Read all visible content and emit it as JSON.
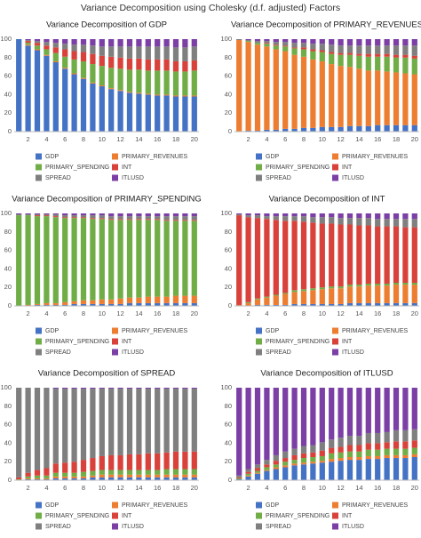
{
  "title": "Variance Decomposition using Cholesky (d.f. adjusted) Factors",
  "chart_data": [
    {
      "type": "bar",
      "stacked": true,
      "title": "Variance Decomposition of GDP",
      "categories": [
        null,
        "2",
        null,
        "4",
        null,
        "6",
        null,
        "8",
        null,
        "10",
        null,
        "12",
        null,
        "14",
        null,
        "16",
        null,
        "18",
        null,
        "20"
      ],
      "ylim": [
        0,
        100
      ],
      "yticks": [
        0,
        20,
        40,
        60,
        80,
        100
      ],
      "series": [
        {
          "name": "GDP",
          "color": "#4472c4",
          "values": [
            100,
            93,
            88,
            82,
            75,
            68,
            62,
            57,
            52,
            49,
            46,
            44,
            42,
            41,
            40,
            39,
            39,
            38,
            38,
            38
          ]
        },
        {
          "name": "PRIMARY_REVENUES",
          "color": "#ed7d31",
          "values": [
            0,
            1,
            1,
            1,
            1,
            1,
            1,
            1,
            1,
            1,
            1,
            1,
            1,
            1,
            1,
            1,
            1,
            1,
            1,
            1
          ]
        },
        {
          "name": "PRIMARY_SPENDING",
          "color": "#70ad47",
          "values": [
            0,
            2,
            4,
            6,
            9,
            12,
            15,
            18,
            20,
            21,
            22,
            23,
            24,
            25,
            25,
            26,
            26,
            26,
            26,
            27
          ]
        },
        {
          "name": "INT",
          "color": "#d9413b",
          "values": [
            0,
            2,
            3,
            4,
            6,
            8,
            9,
            10,
            11,
            11,
            12,
            12,
            12,
            12,
            12,
            12,
            12,
            11,
            11,
            11
          ]
        },
        {
          "name": "SPREAD",
          "color": "#7f7f7f",
          "values": [
            0,
            1,
            2,
            4,
            5,
            6,
            7,
            8,
            9,
            10,
            11,
            12,
            13,
            13,
            14,
            14,
            14,
            15,
            15,
            15
          ]
        },
        {
          "name": "ITLUSD",
          "color": "#7b3fa6",
          "values": [
            0,
            1,
            2,
            3,
            4,
            5,
            6,
            6,
            7,
            8,
            8,
            8,
            8,
            8,
            8,
            8,
            8,
            9,
            9,
            8
          ]
        }
      ]
    },
    {
      "type": "bar",
      "stacked": true,
      "title": "Variance Decomposition of PRIMARY_REVENUES",
      "categories": [
        null,
        "2",
        null,
        "4",
        null,
        "6",
        null,
        "8",
        null,
        "10",
        null,
        "12",
        null,
        "14",
        null,
        "16",
        null,
        "18",
        null,
        "20"
      ],
      "ylim": [
        0,
        100
      ],
      "yticks": [
        0,
        20,
        40,
        60,
        80,
        100
      ],
      "series": [
        {
          "name": "GDP",
          "color": "#4472c4",
          "values": [
            0,
            1,
            1,
            2,
            2,
            3,
            3,
            4,
            4,
            5,
            5,
            5,
            6,
            6,
            6,
            7,
            7,
            7,
            7,
            7
          ]
        },
        {
          "name": "PRIMARY_REVENUES",
          "color": "#ed7d31",
          "values": [
            99,
            96,
            93,
            90,
            87,
            84,
            80,
            77,
            74,
            71,
            68,
            66,
            64,
            62,
            60,
            59,
            58,
            57,
            56,
            55
          ]
        },
        {
          "name": "PRIMARY_SPENDING",
          "color": "#70ad47",
          "values": [
            0,
            1,
            2,
            3,
            4,
            5,
            7,
            8,
            9,
            10,
            11,
            12,
            13,
            14,
            15,
            15,
            16,
            16,
            17,
            17
          ]
        },
        {
          "name": "INT",
          "color": "#d9413b",
          "values": [
            0,
            0,
            0,
            1,
            1,
            1,
            1,
            2,
            2,
            2,
            2,
            2,
            2,
            2,
            3,
            3,
            3,
            3,
            3,
            3
          ]
        },
        {
          "name": "SPREAD",
          "color": "#7f7f7f",
          "values": [
            1,
            1,
            2,
            2,
            3,
            4,
            5,
            5,
            6,
            7,
            8,
            8,
            8,
            9,
            9,
            9,
            9,
            10,
            10,
            11
          ]
        },
        {
          "name": "ITLUSD",
          "color": "#7b3fa6",
          "values": [
            0,
            1,
            2,
            2,
            3,
            3,
            4,
            4,
            5,
            5,
            6,
            7,
            7,
            7,
            7,
            7,
            7,
            7,
            7,
            7
          ]
        }
      ]
    },
    {
      "type": "bar",
      "stacked": true,
      "title": "Variance Decomposition of PRIMARY_SPENDING",
      "categories": [
        null,
        "2",
        null,
        "4",
        null,
        "6",
        null,
        "8",
        null,
        "10",
        null,
        "12",
        null,
        "14",
        null,
        "16",
        null,
        "18",
        null,
        "20"
      ],
      "ylim": [
        0,
        100
      ],
      "yticks": [
        0,
        20,
        40,
        60,
        80,
        100
      ],
      "series": [
        {
          "name": "GDP",
          "color": "#4472c4",
          "values": [
            0,
            0,
            1,
            1,
            1,
            1,
            2,
            2,
            2,
            2,
            2,
            2,
            3,
            3,
            3,
            3,
            3,
            3,
            3,
            3
          ]
        },
        {
          "name": "PRIMARY_REVENUES",
          "color": "#ed7d31",
          "values": [
            0,
            1,
            1,
            2,
            2,
            3,
            3,
            4,
            4,
            5,
            5,
            6,
            6,
            6,
            7,
            7,
            7,
            8,
            8,
            8
          ]
        },
        {
          "name": "PRIMARY_SPENDING",
          "color": "#70ad47",
          "values": [
            98,
            97,
            95,
            94,
            93,
            91,
            90,
            89,
            88,
            87,
            86,
            85,
            84,
            84,
            83,
            83,
            82,
            81,
            81,
            81
          ]
        },
        {
          "name": "INT",
          "color": "#d9413b",
          "values": [
            0,
            0,
            1,
            1,
            1,
            1,
            1,
            1,
            1,
            1,
            1,
            1,
            1,
            1,
            1,
            1,
            1,
            1,
            1,
            1
          ]
        },
        {
          "name": "SPREAD",
          "color": "#7f7f7f",
          "values": [
            1,
            1,
            1,
            1,
            2,
            2,
            2,
            2,
            3,
            3,
            3,
            3,
            3,
            3,
            3,
            3,
            4,
            4,
            4,
            4
          ]
        },
        {
          "name": "ITLUSD",
          "color": "#7b3fa6",
          "values": [
            1,
            1,
            1,
            1,
            1,
            2,
            2,
            2,
            2,
            2,
            3,
            3,
            3,
            3,
            3,
            3,
            3,
            3,
            3,
            3
          ]
        }
      ]
    },
    {
      "type": "bar",
      "stacked": true,
      "title": "Variance Decomposition of INT",
      "categories": [
        null,
        "2",
        null,
        "4",
        null,
        "6",
        null,
        "8",
        null,
        "10",
        null,
        "12",
        null,
        "14",
        null,
        "16",
        null,
        "18",
        null,
        "20"
      ],
      "ylim": [
        0,
        100
      ],
      "yticks": [
        0,
        20,
        40,
        60,
        80,
        100
      ],
      "series": [
        {
          "name": "GDP",
          "color": "#4472c4",
          "values": [
            0,
            0,
            1,
            1,
            1,
            1,
            2,
            2,
            2,
            2,
            2,
            2,
            3,
            3,
            3,
            3,
            3,
            3,
            3,
            3
          ]
        },
        {
          "name": "PRIMARY_REVENUES",
          "color": "#ed7d31",
          "values": [
            1,
            3,
            6,
            8,
            10,
            12,
            13,
            14,
            15,
            16,
            17,
            17,
            18,
            18,
            19,
            19,
            19,
            20,
            20,
            20
          ]
        },
        {
          "name": "PRIMARY_SPENDING",
          "color": "#70ad47",
          "values": [
            0,
            1,
            1,
            1,
            1,
            1,
            2,
            2,
            2,
            2,
            2,
            2,
            2,
            2,
            2,
            2,
            2,
            2,
            2,
            2
          ]
        },
        {
          "name": "INT",
          "color": "#d9413b",
          "values": [
            97,
            92,
            87,
            84,
            81,
            78,
            75,
            73,
            71,
            69,
            68,
            67,
            65,
            64,
            63,
            62,
            62,
            61,
            60,
            60
          ]
        },
        {
          "name": "SPREAD",
          "color": "#7f7f7f",
          "values": [
            1,
            2,
            3,
            3,
            4,
            5,
            5,
            6,
            6,
            7,
            7,
            7,
            7,
            8,
            8,
            8,
            8,
            8,
            9,
            9
          ]
        },
        {
          "name": "ITLUSD",
          "color": "#7b3fa6",
          "values": [
            1,
            2,
            2,
            3,
            3,
            3,
            3,
            3,
            4,
            4,
            4,
            5,
            5,
            5,
            5,
            6,
            6,
            6,
            6,
            6
          ]
        }
      ]
    },
    {
      "type": "bar",
      "stacked": true,
      "title": "Variance Decomposition of SPREAD",
      "categories": [
        null,
        "2",
        null,
        "4",
        null,
        "6",
        null,
        "8",
        null,
        "10",
        null,
        "12",
        null,
        "14",
        null,
        "16",
        null,
        "18",
        null,
        "20"
      ],
      "ylim": [
        0,
        100
      ],
      "yticks": [
        0,
        20,
        40,
        60,
        80,
        100
      ],
      "series": [
        {
          "name": "GDP",
          "color": "#4472c4",
          "values": [
            0,
            1,
            1,
            1,
            2,
            2,
            2,
            2,
            3,
            3,
            3,
            3,
            3,
            3,
            3,
            3,
            3,
            3,
            3,
            3
          ]
        },
        {
          "name": "PRIMARY_REVENUES",
          "color": "#ed7d31",
          "values": [
            0,
            1,
            1,
            1,
            2,
            2,
            2,
            2,
            2,
            3,
            3,
            3,
            3,
            3,
            3,
            3,
            3,
            3,
            3,
            3
          ]
        },
        {
          "name": "PRIMARY_SPENDING",
          "color": "#70ad47",
          "values": [
            1,
            2,
            3,
            3,
            4,
            4,
            4,
            5,
            5,
            5,
            5,
            5,
            5,
            5,
            5,
            5,
            6,
            6,
            6,
            6
          ]
        },
        {
          "name": "INT",
          "color": "#d9413b",
          "values": [
            2,
            4,
            6,
            8,
            10,
            11,
            12,
            13,
            14,
            15,
            16,
            16,
            17,
            17,
            18,
            18,
            18,
            19,
            19,
            19
          ]
        },
        {
          "name": "SPREAD",
          "color": "#7f7f7f",
          "values": [
            97,
            92,
            89,
            87,
            81,
            80,
            79,
            77,
            75,
            73,
            72,
            72,
            71,
            71,
            70,
            70,
            69,
            68,
            68,
            68
          ]
        },
        {
          "name": "ITLUSD",
          "color": "#7b3fa6",
          "values": [
            0,
            0,
            0,
            0,
            1,
            1,
            1,
            1,
            1,
            1,
            1,
            1,
            1,
            1,
            1,
            1,
            1,
            1,
            1,
            1
          ]
        }
      ]
    },
    {
      "type": "bar",
      "stacked": true,
      "title": "Variance Decomposition of ITLUSD",
      "categories": [
        null,
        "2",
        null,
        "4",
        null,
        "6",
        null,
        "8",
        null,
        "10",
        null,
        "12",
        null,
        "14",
        null,
        "16",
        null,
        "18",
        null,
        "20"
      ],
      "ylim": [
        0,
        100
      ],
      "yticks": [
        0,
        20,
        40,
        60,
        80,
        100
      ],
      "series": [
        {
          "name": "GDP",
          "color": "#4472c4",
          "values": [
            1,
            4,
            7,
            10,
            12,
            14,
            16,
            17,
            18,
            19,
            20,
            21,
            22,
            22,
            23,
            23,
            24,
            24,
            24,
            25
          ]
        },
        {
          "name": "PRIMARY_REVENUES",
          "color": "#ed7d31",
          "values": [
            0,
            1,
            1,
            1,
            2,
            2,
            2,
            2,
            2,
            2,
            3,
            3,
            3,
            3,
            3,
            3,
            3,
            3,
            3,
            3
          ]
        },
        {
          "name": "PRIMARY_SPENDING",
          "color": "#70ad47",
          "values": [
            1,
            2,
            2,
            3,
            3,
            4,
            4,
            5,
            5,
            5,
            6,
            6,
            6,
            6,
            7,
            7,
            7,
            7,
            7,
            7
          ]
        },
        {
          "name": "INT",
          "color": "#d9413b",
          "values": [
            1,
            2,
            3,
            3,
            4,
            4,
            5,
            5,
            5,
            6,
            6,
            6,
            7,
            7,
            7,
            7,
            7,
            8,
            8,
            8
          ]
        },
        {
          "name": "SPREAD",
          "color": "#7f7f7f",
          "values": [
            2,
            3,
            4,
            5,
            6,
            7,
            7,
            8,
            8,
            9,
            9,
            10,
            10,
            10,
            11,
            11,
            11,
            12,
            12,
            12
          ]
        },
        {
          "name": "ITLUSD",
          "color": "#7b3fa6",
          "values": [
            95,
            88,
            83,
            78,
            73,
            69,
            66,
            63,
            62,
            59,
            56,
            54,
            52,
            52,
            49,
            49,
            48,
            46,
            46,
            45
          ]
        }
      ]
    }
  ]
}
